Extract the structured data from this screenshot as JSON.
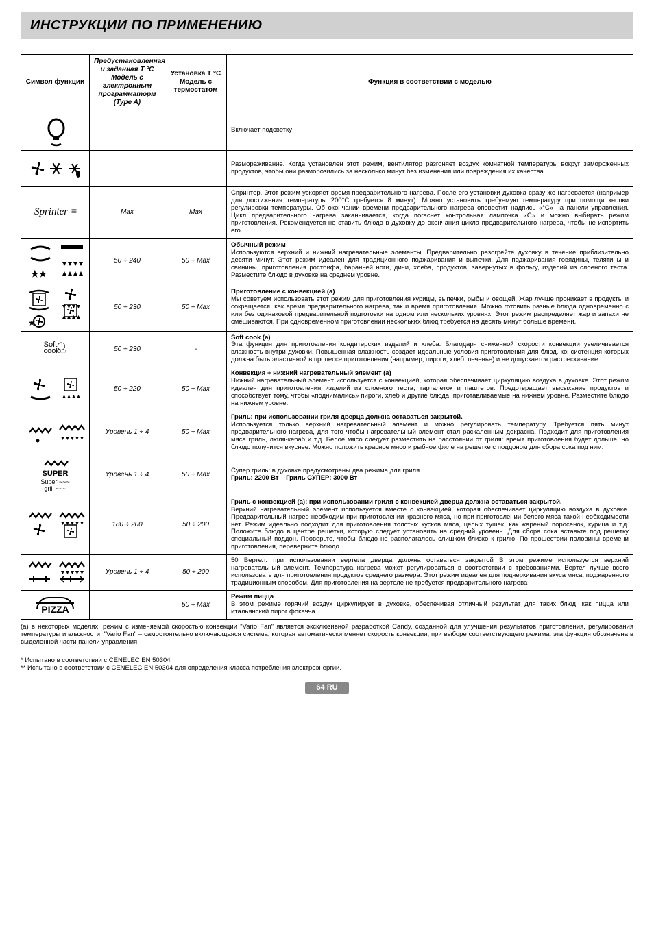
{
  "title": "ИНСТРУКЦИИ ПО ПРИМЕНЕНИЮ",
  "headers": {
    "symbol": "Символ функции",
    "preset": "Предустановленная и заданная T °C Модель с электронным программаторм (Type A)",
    "thermostat": "Установка T °C Модель с термостатом",
    "description": "Функция в соответствии с моделью"
  },
  "rows": [
    {
      "icon": "light",
      "preset": "",
      "therm": "",
      "desc": "Включает подсветку"
    },
    {
      "icon": "defrost",
      "preset": "",
      "therm": "",
      "desc": "Размораживание. Когда установлен этот режим, вентилятор разгоняет воздух комнатной температуры вокруг замороженных продуктов, чтобы они разморозились за несколько минут без изменения или повреждения их качества"
    },
    {
      "icon": "sprinter",
      "preset": "Max",
      "therm": "Max",
      "desc": "Спринтер. Этот режим ускоряет время предварительного нагрева. После его установки духовка сразу же нагревается (например для достижения температуры 200°C требуется 8 минут). Можно установить требуемую температуру при помощи кнопки регулировки температуры. Об окончании времени предварительного нагрева оповестит надпись «°C» на панели управления. Цикл предварительного нагрева заканчивается, когда погаснет контрольная лампочка «C» и можно выбирать режим приготовления. Рекомендуется не ставить блюдо в духовку до окончания цикла предварительного нагрева, чтобы не испортить его."
    },
    {
      "icon": "conventional",
      "preset": "50 ÷ 240",
      "therm": "50 ÷ Max",
      "title": "Обычный режим",
      "desc": "Используются верхний и нижний нагревательные элементы. Предварительно разогрейте духовку в течение приблизительно десяти минут. Этот режим идеален для традиционного поджаривания и выпечки. Для поджаривания говядины, телятины и свинины, приготовления ростбифа, бараньей ноги, дичи, хлеба, продуктов, завернутых в фольгу, изделий из слоеного теста. Разместите блюдо в духовке на среднем уровне."
    },
    {
      "icon": "convection",
      "preset": "50 ÷ 230",
      "therm": "50 ÷ Max",
      "title": "Приготовление с конвекцией (a)",
      "desc": "Мы советуем использовать этот режим для приготовления курицы, выпечки, рыбы и овощей. Жар лучше проникает в продукты и сокращается, как время предварительного нагрева, так и время приготовления. Можно готовить разные блюда одновременно с или без одинаковой предварительной подготовки на одном или нескольких уровнях. Этот режим распределяет жар и запахи не смешиваются. При одновременном приготовлении нескольких блюд требуется на десять минут больше времени."
    },
    {
      "icon": "softcook",
      "preset": "50 ÷ 230",
      "therm": "-",
      "title": "Soft cook (a)",
      "desc": "Эта функция для приготовления кондитерских изделий и хлеба. Благодаря сниженной скорости конвекции увеличивается влажность внутри духовки. Повышенная влажность создает идеальные условия приготовления  для блюд, консистенция которых должна быть эластичной в процессе приготовления (например, пироги, хлеб, печенье) и не допускается растрескивание."
    },
    {
      "icon": "fanbottom",
      "preset": "50 ÷ 220",
      "therm": "50 ÷ Max",
      "title": "Конвекция + нижний нагревательный элемент (a)",
      "desc": "Нижний нагревательный элемент используется с конвекцией, которая обеспечивает циркуляцию воздуха в духовке. Этот режим идеален для приготовления изделий из слоеного теста, тарталеток и паштетов. Предотвращает высыхание продуктов и способствует тому, чтобы «поднимались» пироги, хлеб и другие блюда, приготавливаемые на нижнем уровне. Разместите блюдо на нижнем уровне."
    },
    {
      "icon": "grill",
      "preset": "Уровень 1 ÷ 4",
      "therm": "50 ÷ Max",
      "title": "Гриль: при использовании гриля дверца должна оставаться закрытой.",
      "desc": "Используется только верхний нагревательный элемент и можно регулировать температуру. Требуется пять минут предварительного нагрева, для того чтобы нагревательный элемент стал раскаленным докрасна. Подходит для приготовления мяса гриль, люля-кебаб и т.д. Белое мясо следует разместить на расстоянии от гриля: время приготовления будет дольше, но блюдо получится вкуснее. Можно положить красное мясо и рыбное филе на решетке с поддоном для сбора сока под ним."
    },
    {
      "icon": "supergrill",
      "preset": "Уровень 1 ÷ 4",
      "therm": "50 ÷ Max",
      "desc_html": "Супер гриль: в духовке предусмотрены два режима для гриля<br><b>Гриль: 2200 Вт&nbsp;&nbsp;&nbsp;&nbsp;Гриль СУПЕР: 3000 Вт</b>"
    },
    {
      "icon": "fangrill",
      "preset": "180 ÷ 200",
      "therm": "50 ÷ 200",
      "title": "Гриль с конвекцией (a):  при использовании гриля с конвекцией дверца должна оставаться закрытой.",
      "desc": "Верхний нагревательный элемент используется вместе с конвекцией, которая обеспечивает циркуляцию воздуха в духовке. Предварительный нагрев необходим при приготовлении красного мяса, но при приготовлении белого мяса такой необходимости нет. Режим идеально подходит для приготовления толстых кусков мяса, целых тушек, как жареный поросенок, курица и т.д. Положите блюдо в центре решетки, которую следует установить на средний уровень. Для сбора сока вставьте под решетку специальный поддон. Проверьте, чтобы блюдо не располагалось слишком близко к грилю. По прошествии половины времени приготовления, переверните блюдо."
    },
    {
      "icon": "rotisserie",
      "preset": "Уровень 1 ÷ 4",
      "therm": "50 ÷ 200",
      "desc": "50 Вертел: при использовании вертела дверца должна оставаться закрытой В этом режиме используется верхний нагревательный элемент. Температура нагрева может регулироваться в соответствии с требованиями. Вертел лучше всего использовать для приготовления продуктов среднего размера. Этот режим идеален для подчеркивания вкуса мяса, поджаренного традиционным способом. Для приготовления на вертеле не требуется предварительного нагрева"
    },
    {
      "icon": "pizza",
      "preset": "",
      "therm": "50 ÷ Max",
      "title": "Режим пицца",
      "desc": "В этом режиме горячий воздух циркулирует в духовке, обеспечивая отличный результат для таких блюд, как пицца или итальянский пирог фокачча"
    }
  ],
  "footnote_a": "(a) в некоторых моделях: режим с изменяемой скоростью  конвекции \"Vario Fan\" является эксклюзивной разработкой Candy, созданной для улучшения результатов приготовления, регулирования температуры и влажности. \"Vario Fan\" – самостоятельно включающаяся система, которая автоматически меняет скорость конвекции, при выборе соответствующего режима: эта функция обозначена в выделенной части панели управления.",
  "footnote_star1": "*   Испытано в соответствии с CENELEC EN 50304",
  "footnote_star2": "** Испытано в соответствии с CENELEC EN 50304 для определения класса потребления электроэнергии.",
  "page_number": "64 RU",
  "colors": {
    "header_bg": "#d0d0d0",
    "pagenum_bg": "#888888"
  }
}
